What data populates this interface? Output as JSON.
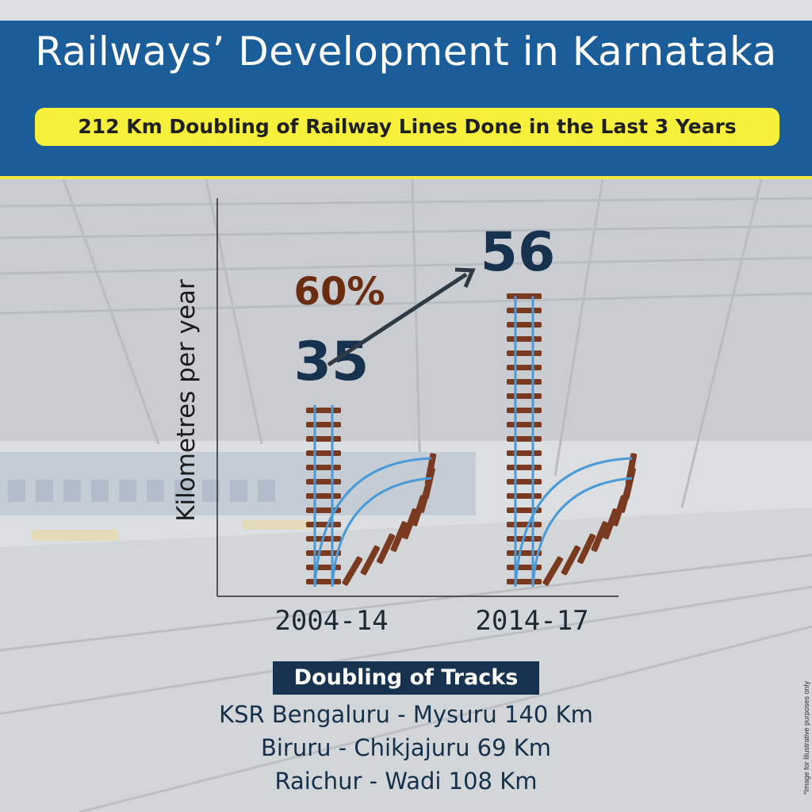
{
  "header": {
    "title": "Railways’ Development in Karnataka",
    "subtitle": "212 Km Doubling of Railway Lines Done in the Last 3 Years"
  },
  "colors": {
    "header_bg": "#1a5d99",
    "subtitle_bg": "#f7f03a",
    "value_text": "#16324f",
    "growth_text": "#6b2d12",
    "rail": "#4a9ad8",
    "sleeper": "#7a3a20"
  },
  "chart_data": {
    "type": "bar",
    "ylabel": "Kilometres per year",
    "categories": [
      "2004-14",
      "2014-17"
    ],
    "values": [
      35,
      56
    ],
    "value_labels": [
      "35",
      "56"
    ],
    "growth_label": "60%",
    "grid": false,
    "bar_style": "railway-track"
  },
  "doubling": {
    "heading": "Doubling of Tracks",
    "routes": [
      "KSR Bengaluru - Mysuru 140 Km",
      "Biruru - Chikjajuru 69 Km",
      "Raichur - Wadi 108 Km"
    ]
  },
  "footnote": "*Image for Illustrative purposes only"
}
